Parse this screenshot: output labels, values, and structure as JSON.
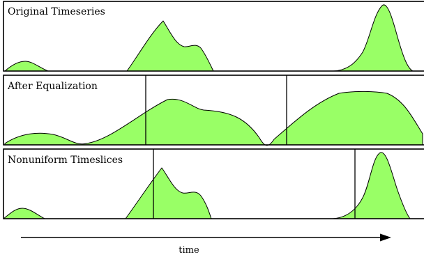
{
  "colors": {
    "curve_fill": "#99ff66",
    "stroke": "#000000",
    "background": "#ffffff"
  },
  "panels": [
    {
      "title": "Original Timeseries"
    },
    {
      "title": "After Equalization"
    },
    {
      "title": "Nonuniform Timeslices"
    }
  ],
  "axis": {
    "label": "time",
    "direction": "right-arrow"
  }
}
